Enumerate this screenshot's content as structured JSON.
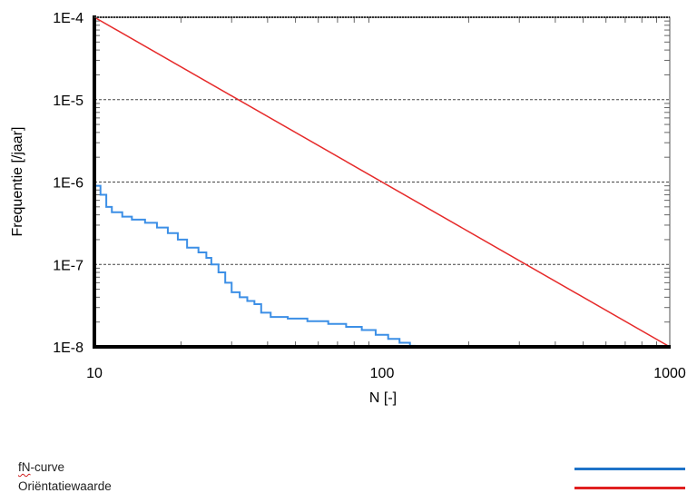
{
  "chart_data": {
    "type": "line",
    "title": "",
    "xlabel": "N [-]",
    "ylabel": "Frequentie [/jaar]",
    "x_scale": "log",
    "y_scale": "log",
    "xlim": [
      10,
      1000
    ],
    "ylim": [
      1e-08,
      0.0001
    ],
    "x_tick_labels": [
      "10",
      "100",
      "1000"
    ],
    "x_ticks": [
      10,
      100,
      1000
    ],
    "y_tick_labels": [
      "1E-4",
      "1E-5",
      "1E-6",
      "1E-7",
      "1E-8"
    ],
    "y_ticks": [
      0.0001,
      1e-05,
      1e-06,
      1e-07,
      1e-08
    ],
    "grid": "horizontal dashed",
    "legend_position": "bottom",
    "series": [
      {
        "name": "fN-curve",
        "color": "#3c8fe6",
        "style": "step",
        "points": [
          [
            10,
            9e-07
          ],
          [
            10.5,
            7e-07
          ],
          [
            11,
            5e-07
          ],
          [
            11.5,
            4.3e-07
          ],
          [
            12.5,
            3.8e-07
          ],
          [
            13.5,
            3.5e-07
          ],
          [
            15,
            3.2e-07
          ],
          [
            16.5,
            2.8e-07
          ],
          [
            18,
            2.4e-07
          ],
          [
            19.5,
            2e-07
          ],
          [
            21,
            1.6e-07
          ],
          [
            23,
            1.4e-07
          ],
          [
            24.5,
            1.2e-07
          ],
          [
            25.5,
            1e-07
          ],
          [
            27,
            8e-08
          ],
          [
            28.5,
            6e-08
          ],
          [
            30,
            4.6e-08
          ],
          [
            32,
            4e-08
          ],
          [
            34,
            3.6e-08
          ],
          [
            36,
            3.3e-08
          ],
          [
            38,
            2.6e-08
          ],
          [
            41,
            2.3e-08
          ],
          [
            47,
            2.2e-08
          ],
          [
            55,
            2.05e-08
          ],
          [
            65,
            1.9e-08
          ],
          [
            75,
            1.75e-08
          ],
          [
            85,
            1.6e-08
          ],
          [
            95,
            1.4e-08
          ],
          [
            105,
            1.25e-08
          ],
          [
            115,
            1.12e-08
          ],
          [
            125,
            1.03e-08
          ],
          [
            130,
            1e-08
          ]
        ]
      },
      {
        "name": "Oriëntatiewaarde",
        "color": "#e62a2a",
        "style": "line",
        "points": [
          [
            10,
            0.0001
          ],
          [
            1000,
            1e-08
          ]
        ]
      }
    ]
  },
  "legend": {
    "items": [
      {
        "label_underlined": "fN",
        "label_rest": "-curve",
        "color": "#1e73c8"
      },
      {
        "label_underlined": "",
        "label_rest": "Oriëntatiewaarde",
        "color": "#e02020"
      }
    ]
  }
}
